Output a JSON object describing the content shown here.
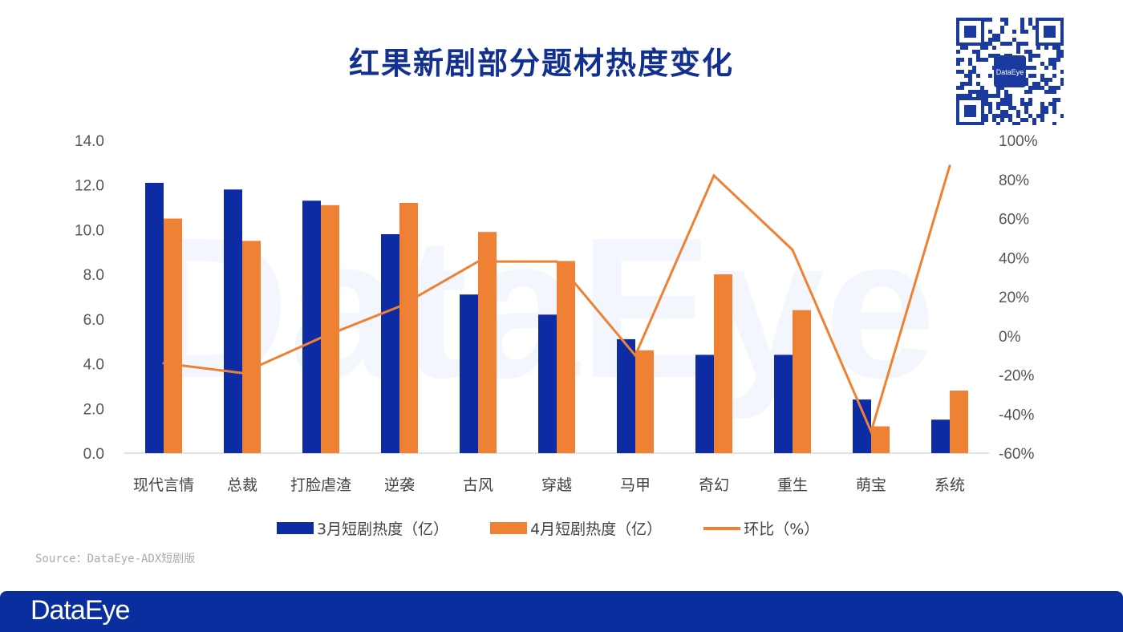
{
  "title": "红果新剧部分题材热度变化",
  "source": "Source：DataEye-ADX短剧版",
  "logo": "DataEye",
  "watermark": "DataEye",
  "qr_label": "DataEye",
  "colors": {
    "march": "#0d2ba3",
    "april": "#ee8133",
    "mom": "#ee8133",
    "title": "#12308f",
    "banner": "#0a2e9e"
  },
  "chart_data": {
    "type": "bar+line",
    "categories": [
      "现代言情",
      "总裁",
      "打脸虐渣",
      "逆袭",
      "古风",
      "穿越",
      "马甲",
      "奇幻",
      "重生",
      "萌宝",
      "系统"
    ],
    "series": [
      {
        "name": "3月短剧热度（亿）",
        "type": "bar",
        "axis": "left",
        "values": [
          12.1,
          11.8,
          11.3,
          9.8,
          7.1,
          6.2,
          5.1,
          4.4,
          4.4,
          2.4,
          1.5
        ]
      },
      {
        "name": "4月短剧热度（亿）",
        "type": "bar",
        "axis": "left",
        "values": [
          10.5,
          9.5,
          11.1,
          11.2,
          9.9,
          8.6,
          4.6,
          8.0,
          6.4,
          1.2,
          2.8
        ]
      },
      {
        "name": "环比（%）",
        "type": "line",
        "axis": "right",
        "values": [
          -14,
          -19,
          -1,
          15,
          38,
          38,
          -10,
          82,
          44,
          -49,
          87
        ]
      }
    ],
    "yleft": {
      "lim": [
        0,
        14
      ],
      "ticks": [
        "0.0",
        "2.0",
        "4.0",
        "6.0",
        "8.0",
        "10.0",
        "12.0",
        "14.0"
      ]
    },
    "yright": {
      "lim": [
        -60,
        100
      ],
      "ticks": [
        "-60%",
        "-40%",
        "-20%",
        "0%",
        "20%",
        "40%",
        "60%",
        "80%",
        "100%"
      ]
    },
    "grid": false,
    "legend": "bottom"
  }
}
